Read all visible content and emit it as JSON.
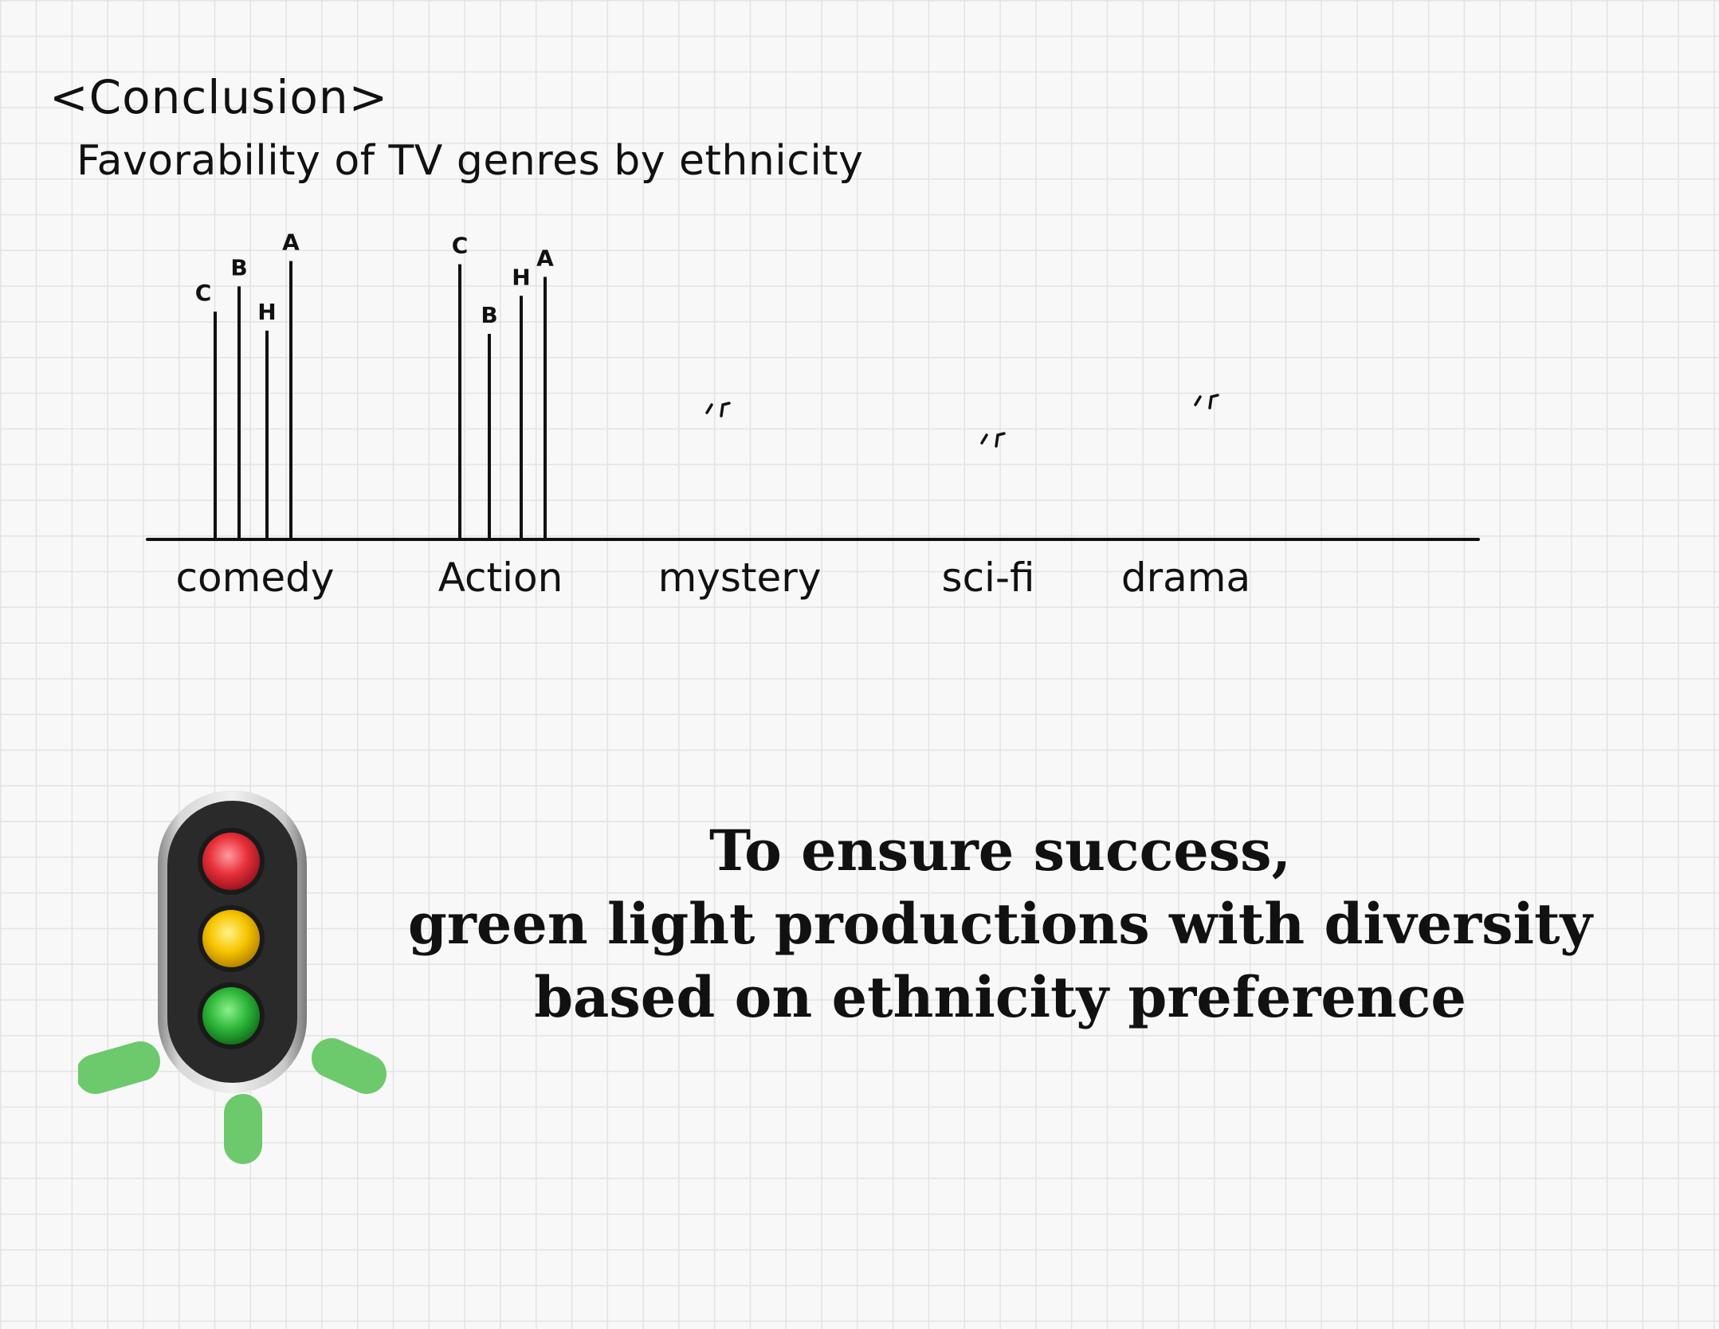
{
  "heading": "<Conclusion>",
  "conclusion_lines": [
    "To ensure success,",
    "green light productions with diversity",
    "based on ethnicity preference"
  ],
  "icons": {
    "traffic_light": "traffic-light-icon"
  },
  "colors": {
    "ink": "#111111",
    "red_light": "#e8303a",
    "yellow_light": "#f7c400",
    "green_light": "#2fb83a",
    "glow": "#6cc96c"
  },
  "chart_data": {
    "type": "bar",
    "title": "Favorability of TV genres by ethnicity",
    "categories": [
      "comedy",
      "Action",
      "mystery",
      "sci-fi",
      "drama"
    ],
    "series": [
      {
        "name": "C",
        "values": [
          72,
          87,
          null,
          null,
          null
        ]
      },
      {
        "name": "B",
        "values": [
          80,
          65,
          null,
          null,
          null
        ]
      },
      {
        "name": "H",
        "values": [
          66,
          77,
          null,
          null,
          null
        ]
      },
      {
        "name": "A",
        "values": [
          88,
          83,
          null,
          null,
          null
        ]
      }
    ],
    "ylim": [
      0,
      100
    ],
    "xlabel": "",
    "ylabel": "",
    "grid": false,
    "legend": "none"
  }
}
